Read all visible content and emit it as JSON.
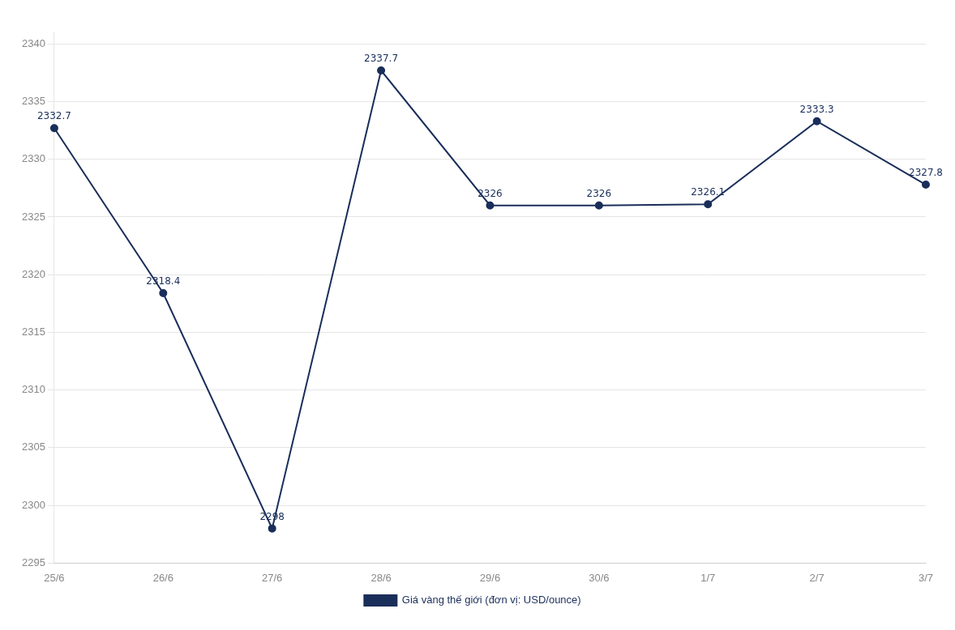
{
  "chart_data": {
    "type": "line",
    "categories": [
      "25/6",
      "26/6",
      "27/6",
      "28/6",
      "29/6",
      "30/6",
      "1/7",
      "2/7",
      "3/7"
    ],
    "series": [
      {
        "name": "Giá vàng thế giới (đơn vị: USD/ounce)",
        "color": "#1a2e5a",
        "values": [
          2332.7,
          2318.4,
          2298,
          2337.7,
          2326,
          2326,
          2326.1,
          2333.3,
          2327.8
        ]
      }
    ],
    "ylim": [
      2295,
      2341
    ],
    "yticks": [
      2295,
      2300,
      2305,
      2310,
      2315,
      2320,
      2325,
      2330,
      2335,
      2340
    ],
    "grid": true,
    "legend": "bottom",
    "data_labels": true,
    "marker": "circle"
  }
}
